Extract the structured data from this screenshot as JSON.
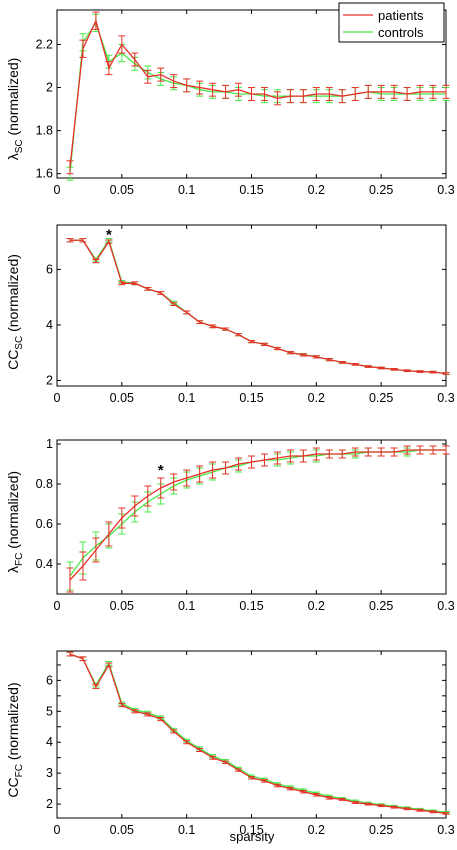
{
  "colors": {
    "patients": "#e8302a",
    "controls": "#44ea44",
    "axis": "#000000"
  },
  "legend": {
    "patients_label": "patients",
    "controls_label": "controls"
  },
  "chart_data": [
    {
      "type": "line",
      "ylabel_main": "λ",
      "ylabel_sub": "SC",
      "ylabel_tail": " (normalized)",
      "xlabel": "",
      "xlim": [
        0,
        0.3
      ],
      "ylim": [
        1.58,
        2.36
      ],
      "yticks": [
        1.6,
        1.8,
        2,
        2.2
      ],
      "ytick_labels": [
        "1.6",
        "1.8",
        "2",
        "2.2"
      ],
      "xticks": [
        0,
        0.05,
        0.1,
        0.15,
        0.2,
        0.25,
        0.3
      ],
      "xtick_labels": [
        "0",
        "0.05",
        "0.1",
        "0.15",
        "0.2",
        "0.25",
        "0.3"
      ],
      "legend_position": "top-right",
      "x": [
        0.01,
        0.02,
        0.03,
        0.04,
        0.05,
        0.06,
        0.07,
        0.08,
        0.09,
        0.1,
        0.11,
        0.12,
        0.13,
        0.14,
        0.15,
        0.16,
        0.17,
        0.18,
        0.19,
        0.2,
        0.21,
        0.22,
        0.23,
        0.24,
        0.25,
        0.26,
        0.27,
        0.28,
        0.29,
        0.3
      ],
      "series": [
        {
          "name": "patients",
          "values": [
            1.63,
            2.18,
            2.31,
            2.09,
            2.2,
            2.13,
            2.05,
            2.06,
            2.03,
            2.01,
            2.0,
            1.99,
            1.98,
            1.99,
            1.97,
            1.97,
            1.95,
            1.96,
            1.96,
            1.97,
            1.97,
            1.96,
            1.97,
            1.98,
            1.98,
            1.98,
            1.97,
            1.98,
            1.98,
            1.98
          ],
          "errors": [
            0.03,
            0.04,
            0.04,
            0.03,
            0.04,
            0.03,
            0.03,
            0.03,
            0.03,
            0.03,
            0.03,
            0.03,
            0.03,
            0.03,
            0.03,
            0.03,
            0.03,
            0.03,
            0.03,
            0.03,
            0.03,
            0.03,
            0.03,
            0.03,
            0.03,
            0.03,
            0.03,
            0.03,
            0.03,
            0.03
          ]
        },
        {
          "name": "controls",
          "values": [
            1.6,
            2.21,
            2.3,
            2.12,
            2.16,
            2.11,
            2.07,
            2.04,
            2.02,
            2.01,
            1.99,
            1.98,
            1.98,
            1.97,
            1.97,
            1.96,
            1.96,
            1.96,
            1.96,
            1.96,
            1.96,
            1.96,
            1.97,
            1.98,
            1.97,
            1.97,
            1.97,
            1.97,
            1.97,
            1.97
          ],
          "errors": [
            0.03,
            0.04,
            0.04,
            0.03,
            0.04,
            0.03,
            0.03,
            0.03,
            0.03,
            0.03,
            0.03,
            0.03,
            0.03,
            0.03,
            0.03,
            0.03,
            0.03,
            0.03,
            0.03,
            0.03,
            0.03,
            0.03,
            0.03,
            0.03,
            0.03,
            0.03,
            0.03,
            0.03,
            0.03,
            0.03
          ]
        }
      ],
      "annotations": []
    },
    {
      "type": "line",
      "ylabel_main": "CC",
      "ylabel_sub": "SC",
      "ylabel_tail": " (normalized)",
      "xlabel": "",
      "xlim": [
        0,
        0.3
      ],
      "ylim": [
        1.8,
        7.6
      ],
      "yticks": [
        2,
        4,
        6
      ],
      "ytick_labels": [
        "2",
        "4",
        "6"
      ],
      "xticks": [
        0,
        0.05,
        0.1,
        0.15,
        0.2,
        0.25,
        0.3
      ],
      "xtick_labels": [
        "0",
        "0.05",
        "0.1",
        "0.15",
        "0.2",
        "0.25",
        "0.3"
      ],
      "x": [
        0.01,
        0.02,
        0.03,
        0.04,
        0.05,
        0.06,
        0.07,
        0.08,
        0.09,
        0.1,
        0.11,
        0.12,
        0.13,
        0.14,
        0.15,
        0.16,
        0.17,
        0.18,
        0.19,
        0.2,
        0.21,
        0.22,
        0.23,
        0.24,
        0.25,
        0.26,
        0.27,
        0.28,
        0.29,
        0.3
      ],
      "series": [
        {
          "name": "patients",
          "values": [
            7.05,
            7.05,
            6.3,
            7.0,
            5.5,
            5.5,
            5.3,
            5.15,
            4.75,
            4.45,
            4.1,
            3.95,
            3.85,
            3.65,
            3.4,
            3.3,
            3.15,
            3.0,
            2.92,
            2.85,
            2.75,
            2.65,
            2.58,
            2.5,
            2.45,
            2.4,
            2.35,
            2.32,
            2.3,
            2.25
          ],
          "errors": [
            0.06,
            0.06,
            0.06,
            0.06,
            0.05,
            0.05,
            0.05,
            0.05,
            0.05,
            0.05,
            0.05,
            0.05,
            0.04,
            0.04,
            0.04,
            0.04,
            0.04,
            0.04,
            0.04,
            0.04,
            0.04,
            0.03,
            0.03,
            0.03,
            0.03,
            0.03,
            0.03,
            0.03,
            0.03,
            0.03
          ]
        },
        {
          "name": "controls",
          "values": [
            7.05,
            7.05,
            6.35,
            7.05,
            5.55,
            5.5,
            5.3,
            5.15,
            4.8,
            4.45,
            4.1,
            3.95,
            3.85,
            3.65,
            3.4,
            3.3,
            3.15,
            3.0,
            2.93,
            2.85,
            2.75,
            2.65,
            2.58,
            2.5,
            2.45,
            2.4,
            2.35,
            2.32,
            2.3,
            2.25
          ],
          "errors": [
            0.06,
            0.06,
            0.06,
            0.06,
            0.05,
            0.05,
            0.05,
            0.05,
            0.05,
            0.05,
            0.05,
            0.05,
            0.04,
            0.04,
            0.04,
            0.04,
            0.04,
            0.04,
            0.04,
            0.04,
            0.04,
            0.03,
            0.03,
            0.03,
            0.03,
            0.03,
            0.03,
            0.03,
            0.03,
            0.03
          ]
        }
      ],
      "annotations": [
        {
          "text": "*",
          "x": 0.04,
          "y": 7.3
        }
      ]
    },
    {
      "type": "line",
      "ylabel_main": "λ",
      "ylabel_sub": "FC",
      "ylabel_tail": " (normalized)",
      "xlabel": "",
      "xlim": [
        0,
        0.3
      ],
      "ylim": [
        0.25,
        1.02
      ],
      "yticks": [
        0.4,
        0.6,
        0.8,
        1
      ],
      "ytick_labels": [
        "0.4",
        "0.6",
        "0.8",
        "1"
      ],
      "xticks": [
        0,
        0.05,
        0.1,
        0.15,
        0.2,
        0.25,
        0.3
      ],
      "xtick_labels": [
        "0",
        "0.05",
        "0.1",
        "0.15",
        "0.2",
        "0.25",
        "0.3"
      ],
      "x": [
        0.01,
        0.02,
        0.03,
        0.04,
        0.05,
        0.06,
        0.07,
        0.08,
        0.09,
        0.1,
        0.11,
        0.12,
        0.13,
        0.14,
        0.15,
        0.16,
        0.17,
        0.18,
        0.19,
        0.2,
        0.21,
        0.22,
        0.23,
        0.24,
        0.25,
        0.26,
        0.27,
        0.28,
        0.29,
        0.3
      ],
      "series": [
        {
          "name": "patients",
          "values": [
            0.32,
            0.39,
            0.47,
            0.55,
            0.63,
            0.69,
            0.74,
            0.78,
            0.81,
            0.83,
            0.85,
            0.87,
            0.88,
            0.9,
            0.91,
            0.92,
            0.93,
            0.94,
            0.94,
            0.95,
            0.95,
            0.95,
            0.96,
            0.96,
            0.96,
            0.96,
            0.97,
            0.97,
            0.97,
            0.97
          ],
          "errors": [
            0.06,
            0.07,
            0.06,
            0.06,
            0.05,
            0.05,
            0.05,
            0.05,
            0.04,
            0.04,
            0.04,
            0.04,
            0.03,
            0.03,
            0.03,
            0.03,
            0.03,
            0.03,
            0.03,
            0.03,
            0.02,
            0.02,
            0.02,
            0.02,
            0.02,
            0.02,
            0.02,
            0.02,
            0.02,
            0.02
          ]
        },
        {
          "name": "controls",
          "values": [
            0.34,
            0.43,
            0.49,
            0.54,
            0.6,
            0.66,
            0.71,
            0.75,
            0.79,
            0.82,
            0.84,
            0.86,
            0.88,
            0.89,
            0.91,
            0.92,
            0.92,
            0.93,
            0.94,
            0.94,
            0.95,
            0.95,
            0.95,
            0.96,
            0.96,
            0.96,
            0.96,
            0.97,
            0.97,
            0.97
          ],
          "errors": [
            0.07,
            0.08,
            0.07,
            0.06,
            0.05,
            0.05,
            0.05,
            0.05,
            0.04,
            0.04,
            0.04,
            0.04,
            0.03,
            0.03,
            0.03,
            0.03,
            0.03,
            0.03,
            0.03,
            0.03,
            0.02,
            0.02,
            0.02,
            0.02,
            0.02,
            0.02,
            0.02,
            0.02,
            0.02,
            0.02
          ]
        }
      ],
      "annotations": [
        {
          "text": "*",
          "x": 0.08,
          "y": 0.875
        }
      ]
    },
    {
      "type": "line",
      "ylabel_main": "CC",
      "ylabel_sub": "FC",
      "ylabel_tail": " (normalized)",
      "xlabel": "sparsity",
      "xlim": [
        0,
        0.3
      ],
      "ylim": [
        1.55,
        6.95
      ],
      "yticks": [
        2,
        2.5,
        3,
        3.5,
        4,
        4.5,
        5,
        5.5,
        6,
        6.5
      ],
      "ytick_labels": [
        "2",
        "",
        "3",
        "",
        "4",
        "",
        "5",
        "",
        "6",
        ""
      ],
      "xticks": [
        0,
        0.05,
        0.1,
        0.15,
        0.2,
        0.25,
        0.3
      ],
      "xtick_labels": [
        "0",
        "0.05",
        "0.1",
        "0.15",
        "0.2",
        "0.25",
        "0.3"
      ],
      "x": [
        0.01,
        0.02,
        0.03,
        0.04,
        0.05,
        0.06,
        0.07,
        0.08,
        0.09,
        0.1,
        0.11,
        0.12,
        0.13,
        0.14,
        0.15,
        0.16,
        0.17,
        0.18,
        0.19,
        0.2,
        0.21,
        0.22,
        0.23,
        0.24,
        0.25,
        0.26,
        0.27,
        0.28,
        0.29,
        0.3
      ],
      "series": [
        {
          "name": "patients",
          "values": [
            6.85,
            6.7,
            5.8,
            6.5,
            5.2,
            5.0,
            4.9,
            4.75,
            4.35,
            4.0,
            3.75,
            3.5,
            3.35,
            3.1,
            2.85,
            2.75,
            2.6,
            2.5,
            2.4,
            2.3,
            2.2,
            2.15,
            2.05,
            2.0,
            1.95,
            1.9,
            1.85,
            1.8,
            1.75,
            1.7
          ],
          "errors": [
            0.06,
            0.06,
            0.06,
            0.06,
            0.05,
            0.05,
            0.05,
            0.05,
            0.05,
            0.05,
            0.05,
            0.05,
            0.04,
            0.04,
            0.04,
            0.04,
            0.04,
            0.04,
            0.04,
            0.04,
            0.04,
            0.03,
            0.03,
            0.03,
            0.03,
            0.03,
            0.03,
            0.03,
            0.03,
            0.03
          ]
        },
        {
          "name": "controls",
          "values": [
            6.85,
            6.7,
            5.85,
            6.55,
            5.25,
            5.05,
            4.95,
            4.8,
            4.4,
            4.05,
            3.8,
            3.55,
            3.4,
            3.15,
            2.9,
            2.8,
            2.65,
            2.55,
            2.45,
            2.35,
            2.25,
            2.18,
            2.1,
            2.03,
            1.98,
            1.93,
            1.88,
            1.83,
            1.78,
            1.73
          ],
          "errors": [
            0.06,
            0.06,
            0.06,
            0.06,
            0.05,
            0.05,
            0.05,
            0.05,
            0.05,
            0.05,
            0.05,
            0.05,
            0.04,
            0.04,
            0.04,
            0.04,
            0.04,
            0.04,
            0.04,
            0.04,
            0.04,
            0.03,
            0.03,
            0.03,
            0.03,
            0.03,
            0.03,
            0.03,
            0.03,
            0.03
          ]
        }
      ],
      "annotations": []
    }
  ]
}
